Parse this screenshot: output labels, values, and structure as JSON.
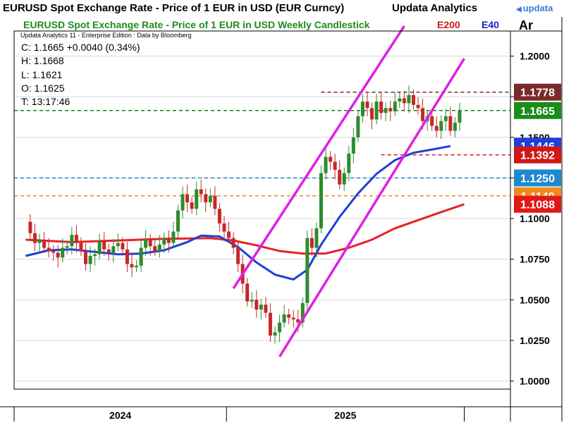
{
  "window": {
    "title": "EURUSD Spot Exchange Rate - Price of 1 EUR in USD (EUR Curncy)",
    "brand": "Updata Analytics",
    "logo_text": "updata",
    "corner_label": "Ar"
  },
  "info": {
    "subtitle": "Updata Analytics 11 - Enterprise Edition : Data by Bloomberg",
    "close": "C: 1.1665  +0.0040 (0.34%)",
    "high": "H: 1.1668",
    "low": "L: 1.1621",
    "open": "O: 1.1625",
    "time": "T: 13:17:46"
  },
  "legend": {
    "e200": "E200",
    "e40": "E40"
  },
  "colors": {
    "up": "#2e8b2e",
    "down": "#c62828",
    "e200": "#e8202a",
    "e40": "#1f3fd6",
    "channel": "#e020e0",
    "title": "#1e8c1e"
  },
  "chart_data": {
    "type": "candlestick",
    "title": "EURUSD Spot Exchange Rate - Price of 1 EUR in USD Weekly Candlestick",
    "xlabel": "",
    "ylabel": "",
    "ylim": [
      0.995,
      1.215
    ],
    "yticks": [
      1.0,
      1.025,
      1.05,
      1.075,
      1.1,
      1.125,
      1.15,
      1.175,
      1.2
    ],
    "ytick_labels": [
      "1.0000",
      "1.0250",
      "1.0500",
      "1.0750",
      "1.1000",
      "",
      "1.1500",
      "",
      "1.2000"
    ],
    "xtick_labels": [
      "2024",
      "2025"
    ],
    "grid": true,
    "close_path": [
      [
        0,
        1.098
      ],
      [
        1,
        1.091
      ],
      [
        2,
        1.085
      ],
      [
        3,
        1.087
      ],
      [
        4,
        1.082
      ],
      [
        5,
        1.08
      ],
      [
        6,
        1.079
      ],
      [
        7,
        1.076
      ],
      [
        8,
        1.082
      ],
      [
        9,
        1.083
      ],
      [
        10,
        1.09
      ],
      [
        11,
        1.085
      ],
      [
        12,
        1.08
      ],
      [
        13,
        1.072
      ],
      [
        14,
        1.077
      ],
      [
        15,
        1.078
      ],
      [
        16,
        1.086
      ],
      [
        17,
        1.081
      ],
      [
        18,
        1.079
      ],
      [
        19,
        1.083
      ],
      [
        20,
        1.085
      ],
      [
        21,
        1.081
      ],
      [
        22,
        1.072
      ],
      [
        23,
        1.07
      ],
      [
        24,
        1.071
      ],
      [
        25,
        1.082
      ],
      [
        26,
        1.087
      ],
      [
        27,
        1.083
      ],
      [
        28,
        1.08
      ],
      [
        29,
        1.084
      ],
      [
        30,
        1.088
      ],
      [
        31,
        1.085
      ],
      [
        32,
        1.092
      ],
      [
        33,
        1.105
      ],
      [
        34,
        1.115
      ],
      [
        35,
        1.11
      ],
      [
        36,
        1.106
      ],
      [
        37,
        1.118
      ],
      [
        38,
        1.115
      ],
      [
        39,
        1.11
      ],
      [
        40,
        1.114
      ],
      [
        41,
        1.106
      ],
      [
        42,
        1.097
      ],
      [
        43,
        1.092
      ],
      [
        44,
        1.088
      ],
      [
        45,
        1.082
      ],
      [
        46,
        1.072
      ],
      [
        47,
        1.06
      ],
      [
        48,
        1.049
      ],
      [
        49,
        1.05
      ],
      [
        50,
        1.044
      ],
      [
        51,
        1.047
      ],
      [
        52,
        1.042
      ],
      [
        53,
        1.028
      ],
      [
        54,
        1.03
      ],
      [
        55,
        1.036
      ],
      [
        56,
        1.041
      ],
      [
        57,
        1.039
      ],
      [
        58,
        1.038
      ],
      [
        59,
        1.036
      ],
      [
        60,
        1.048
      ],
      [
        61,
        1.088
      ],
      [
        62,
        1.082
      ],
      [
        63,
        1.094
      ],
      [
        64,
        1.128
      ],
      [
        65,
        1.138
      ],
      [
        66,
        1.135
      ],
      [
        67,
        1.13
      ],
      [
        68,
        1.121
      ],
      [
        69,
        1.128
      ],
      [
        70,
        1.14
      ],
      [
        71,
        1.15
      ],
      [
        72,
        1.163
      ],
      [
        73,
        1.172
      ],
      [
        74,
        1.168
      ],
      [
        75,
        1.161
      ],
      [
        76,
        1.172
      ],
      [
        77,
        1.165
      ],
      [
        78,
        1.168
      ],
      [
        79,
        1.166
      ],
      [
        80,
        1.172
      ],
      [
        81,
        1.174
      ],
      [
        82,
        1.171
      ],
      [
        83,
        1.176
      ],
      [
        84,
        1.17
      ],
      [
        85,
        1.168
      ],
      [
        86,
        1.16
      ],
      [
        87,
        1.163
      ],
      [
        88,
        1.157
      ],
      [
        89,
        1.154
      ],
      [
        90,
        1.16
      ],
      [
        91,
        1.163
      ],
      [
        92,
        1.154
      ],
      [
        93,
        1.159
      ],
      [
        94,
        1.1665
      ]
    ],
    "x_range": [
      -2.5,
      105
    ],
    "e200_path": [
      [
        0,
        1.087
      ],
      [
        10,
        1.0855
      ],
      [
        20,
        1.0865
      ],
      [
        30,
        1.0875
      ],
      [
        40,
        1.088
      ],
      [
        45,
        1.0865
      ],
      [
        50,
        1.0835
      ],
      [
        55,
        1.08
      ],
      [
        60,
        1.0785
      ],
      [
        65,
        1.0785
      ],
      [
        70,
        1.082
      ],
      [
        75,
        1.087
      ],
      [
        80,
        1.094
      ],
      [
        85,
        1.099
      ],
      [
        90,
        1.104
      ],
      [
        95,
        1.1088
      ]
    ],
    "e40_path": [
      [
        0,
        1.077
      ],
      [
        5,
        1.0805
      ],
      [
        10,
        1.081
      ],
      [
        15,
        1.0795
      ],
      [
        20,
        1.078
      ],
      [
        25,
        1.0785
      ],
      [
        30,
        1.0805
      ],
      [
        35,
        1.0855
      ],
      [
        38,
        1.0895
      ],
      [
        42,
        1.089
      ],
      [
        46,
        1.0825
      ],
      [
        50,
        1.073
      ],
      [
        54,
        1.0655
      ],
      [
        58,
        1.0625
      ],
      [
        61,
        1.0685
      ],
      [
        64,
        1.084
      ],
      [
        68,
        1.101
      ],
      [
        72,
        1.1155
      ],
      [
        76,
        1.1275
      ],
      [
        80,
        1.136
      ],
      [
        84,
        1.1405
      ],
      [
        88,
        1.1425
      ],
      [
        92,
        1.1446
      ]
    ],
    "channel_lines": [
      {
        "from": [
          55,
          1.015
        ],
        "to": [
          95,
          1.1985
        ]
      },
      {
        "from": [
          45,
          1.057
        ],
        "to": [
          82,
          1.2185
        ]
      }
    ],
    "levels": [
      {
        "value": 1.1778,
        "label": "1.1778",
        "line_color": "#7b2a2a",
        "box_color": "#7b2a2a",
        "from_x": 64,
        "dashed": true
      },
      {
        "value": 1.1665,
        "label": "1.1665",
        "line_color": "#1a7f1a",
        "box_color": "#1a8c1a",
        "from_x": -2.5,
        "dashed": true
      },
      {
        "value": 1.1446,
        "label": "1.1446",
        "line_color": "#1f3fd6",
        "box_color": "#1f3fd6",
        "from_x": 92,
        "dashed": false
      },
      {
        "value": 1.1392,
        "label": "1.1392",
        "line_color": "#d01818",
        "box_color": "#d01818",
        "from_x": 77,
        "dashed": true
      },
      {
        "value": 1.125,
        "label": "1.1250",
        "line_color": "#1e88d0",
        "box_color": "#1e88d0",
        "from_x": -2.5,
        "dashed": true
      },
      {
        "value": 1.114,
        "label": "1.1140",
        "line_color": "#f08a1c",
        "box_color": "#f08a1c",
        "from_x": -2.5,
        "dashed": true
      },
      {
        "value": 1.1088,
        "label": "1.1088",
        "line_color": "#e8202a",
        "box_color": "#e01818",
        "from_x": 95,
        "dashed": false
      }
    ],
    "year_dividers": [
      -2.5,
      43.5,
      95
    ]
  }
}
